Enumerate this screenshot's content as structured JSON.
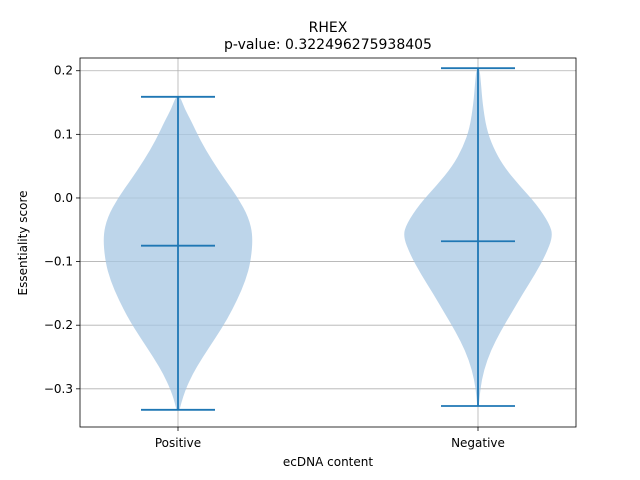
{
  "chart_data": {
    "type": "violin",
    "title": "RHEX",
    "subtitle": "p-value: 0.322496275938405",
    "xlabel": "ecDNA content",
    "ylabel": "Essentiality score",
    "ylim": [
      -0.36,
      0.22
    ],
    "yticks": [
      -0.3,
      -0.2,
      -0.1,
      0.0,
      0.1,
      0.2
    ],
    "ytick_labels": [
      "−0.3",
      "−0.2",
      "−0.1",
      "0.0",
      "0.1",
      "0.2"
    ],
    "grid": true,
    "categories": [
      "Positive",
      "Negative"
    ],
    "colors": {
      "body": "#a7c7e3",
      "lines": "#1f77b4"
    },
    "series": [
      {
        "category": "Positive",
        "min": -0.333,
        "max": 0.159,
        "median": -0.075,
        "density": [
          [
            -0.333,
            0.02
          ],
          [
            -0.31,
            0.07
          ],
          [
            -0.28,
            0.18
          ],
          [
            -0.25,
            0.33
          ],
          [
            -0.22,
            0.5
          ],
          [
            -0.19,
            0.66
          ],
          [
            -0.16,
            0.79
          ],
          [
            -0.13,
            0.9
          ],
          [
            -0.1,
            0.97
          ],
          [
            -0.06,
            1.0
          ],
          [
            -0.03,
            0.94
          ],
          [
            0.0,
            0.8
          ],
          [
            0.03,
            0.62
          ],
          [
            0.06,
            0.45
          ],
          [
            0.09,
            0.3
          ],
          [
            0.12,
            0.18
          ],
          [
            0.14,
            0.09
          ],
          [
            0.159,
            0.03
          ]
        ]
      },
      {
        "category": "Negative",
        "min": -0.327,
        "max": 0.204,
        "median": -0.068,
        "density": [
          [
            -0.327,
            0.01
          ],
          [
            -0.3,
            0.03
          ],
          [
            -0.27,
            0.08
          ],
          [
            -0.24,
            0.17
          ],
          [
            -0.21,
            0.3
          ],
          [
            -0.18,
            0.45
          ],
          [
            -0.15,
            0.6
          ],
          [
            -0.12,
            0.76
          ],
          [
            -0.09,
            0.9
          ],
          [
            -0.06,
            1.0
          ],
          [
            -0.04,
            0.95
          ],
          [
            -0.01,
            0.78
          ],
          [
            0.02,
            0.55
          ],
          [
            0.05,
            0.34
          ],
          [
            0.08,
            0.2
          ],
          [
            0.11,
            0.11
          ],
          [
            0.15,
            0.06
          ],
          [
            0.18,
            0.04
          ],
          [
            0.204,
            0.02
          ]
        ]
      }
    ]
  }
}
